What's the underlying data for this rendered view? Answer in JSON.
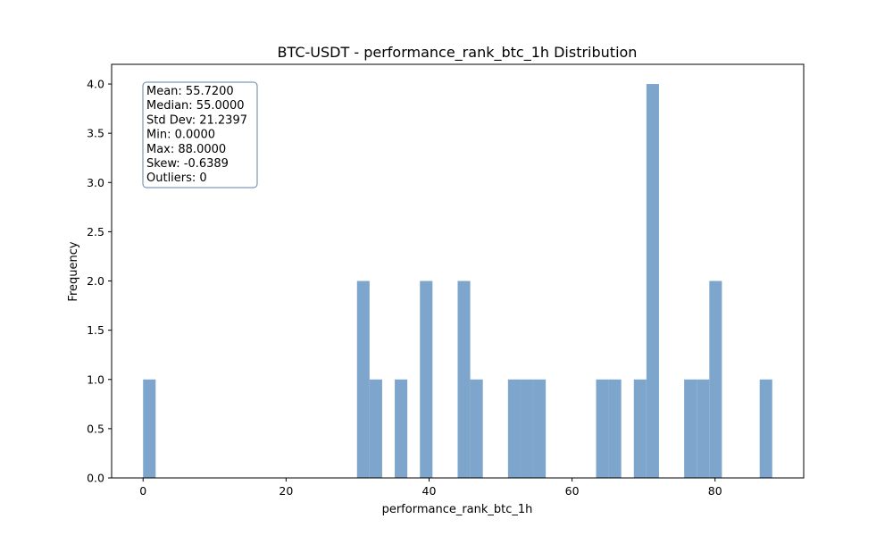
{
  "chart_data": {
    "type": "bar",
    "title": "BTC-USDT - performance_rank_btc_1h Distribution",
    "xlabel": "performance_rank_btc_1h",
    "ylabel": "Frequency",
    "xlim": [
      -4.4,
      92.4
    ],
    "ylim": [
      0,
      4.2
    ],
    "xticks": [
      0,
      20,
      40,
      60,
      80
    ],
    "yticks": [
      0.0,
      0.5,
      1.0,
      1.5,
      2.0,
      2.5,
      3.0,
      3.5,
      4.0
    ],
    "x_tick_labels": [
      "0",
      "20",
      "40",
      "60",
      "80"
    ],
    "y_tick_labels": [
      "0.0",
      "0.5",
      "1.0",
      "1.5",
      "2.0",
      "2.5",
      "3.0",
      "3.5",
      "4.0"
    ],
    "bins": {
      "start": 0,
      "width": 1.76,
      "count": 50
    },
    "bar_color": "#7ea6cc",
    "bars": [
      {
        "bin_start": 0.0,
        "count": 1
      },
      {
        "bin_start": 29.92,
        "count": 2
      },
      {
        "bin_start": 31.68,
        "count": 1
      },
      {
        "bin_start": 35.2,
        "count": 1
      },
      {
        "bin_start": 38.72,
        "count": 2
      },
      {
        "bin_start": 44.0,
        "count": 2
      },
      {
        "bin_start": 45.76,
        "count": 1
      },
      {
        "bin_start": 51.04,
        "count": 1
      },
      {
        "bin_start": 52.8,
        "count": 1
      },
      {
        "bin_start": 54.56,
        "count": 1
      },
      {
        "bin_start": 63.36,
        "count": 1
      },
      {
        "bin_start": 65.12,
        "count": 1
      },
      {
        "bin_start": 68.64,
        "count": 1
      },
      {
        "bin_start": 70.4,
        "count": 4
      },
      {
        "bin_start": 75.68,
        "count": 1
      },
      {
        "bin_start": 77.44,
        "count": 1
      },
      {
        "bin_start": 79.2,
        "count": 2
      },
      {
        "bin_start": 86.24,
        "count": 1
      }
    ],
    "stats_box": {
      "placement": "top-left",
      "lines": [
        "Mean: 55.7200",
        "Median: 55.0000",
        "Std Dev: 21.2397",
        "Min: 0.0000",
        "Max: 88.0000",
        "Skew: -0.6389",
        "Outliers: 0"
      ],
      "border_color": "#5a86ad"
    },
    "grid": false
  }
}
